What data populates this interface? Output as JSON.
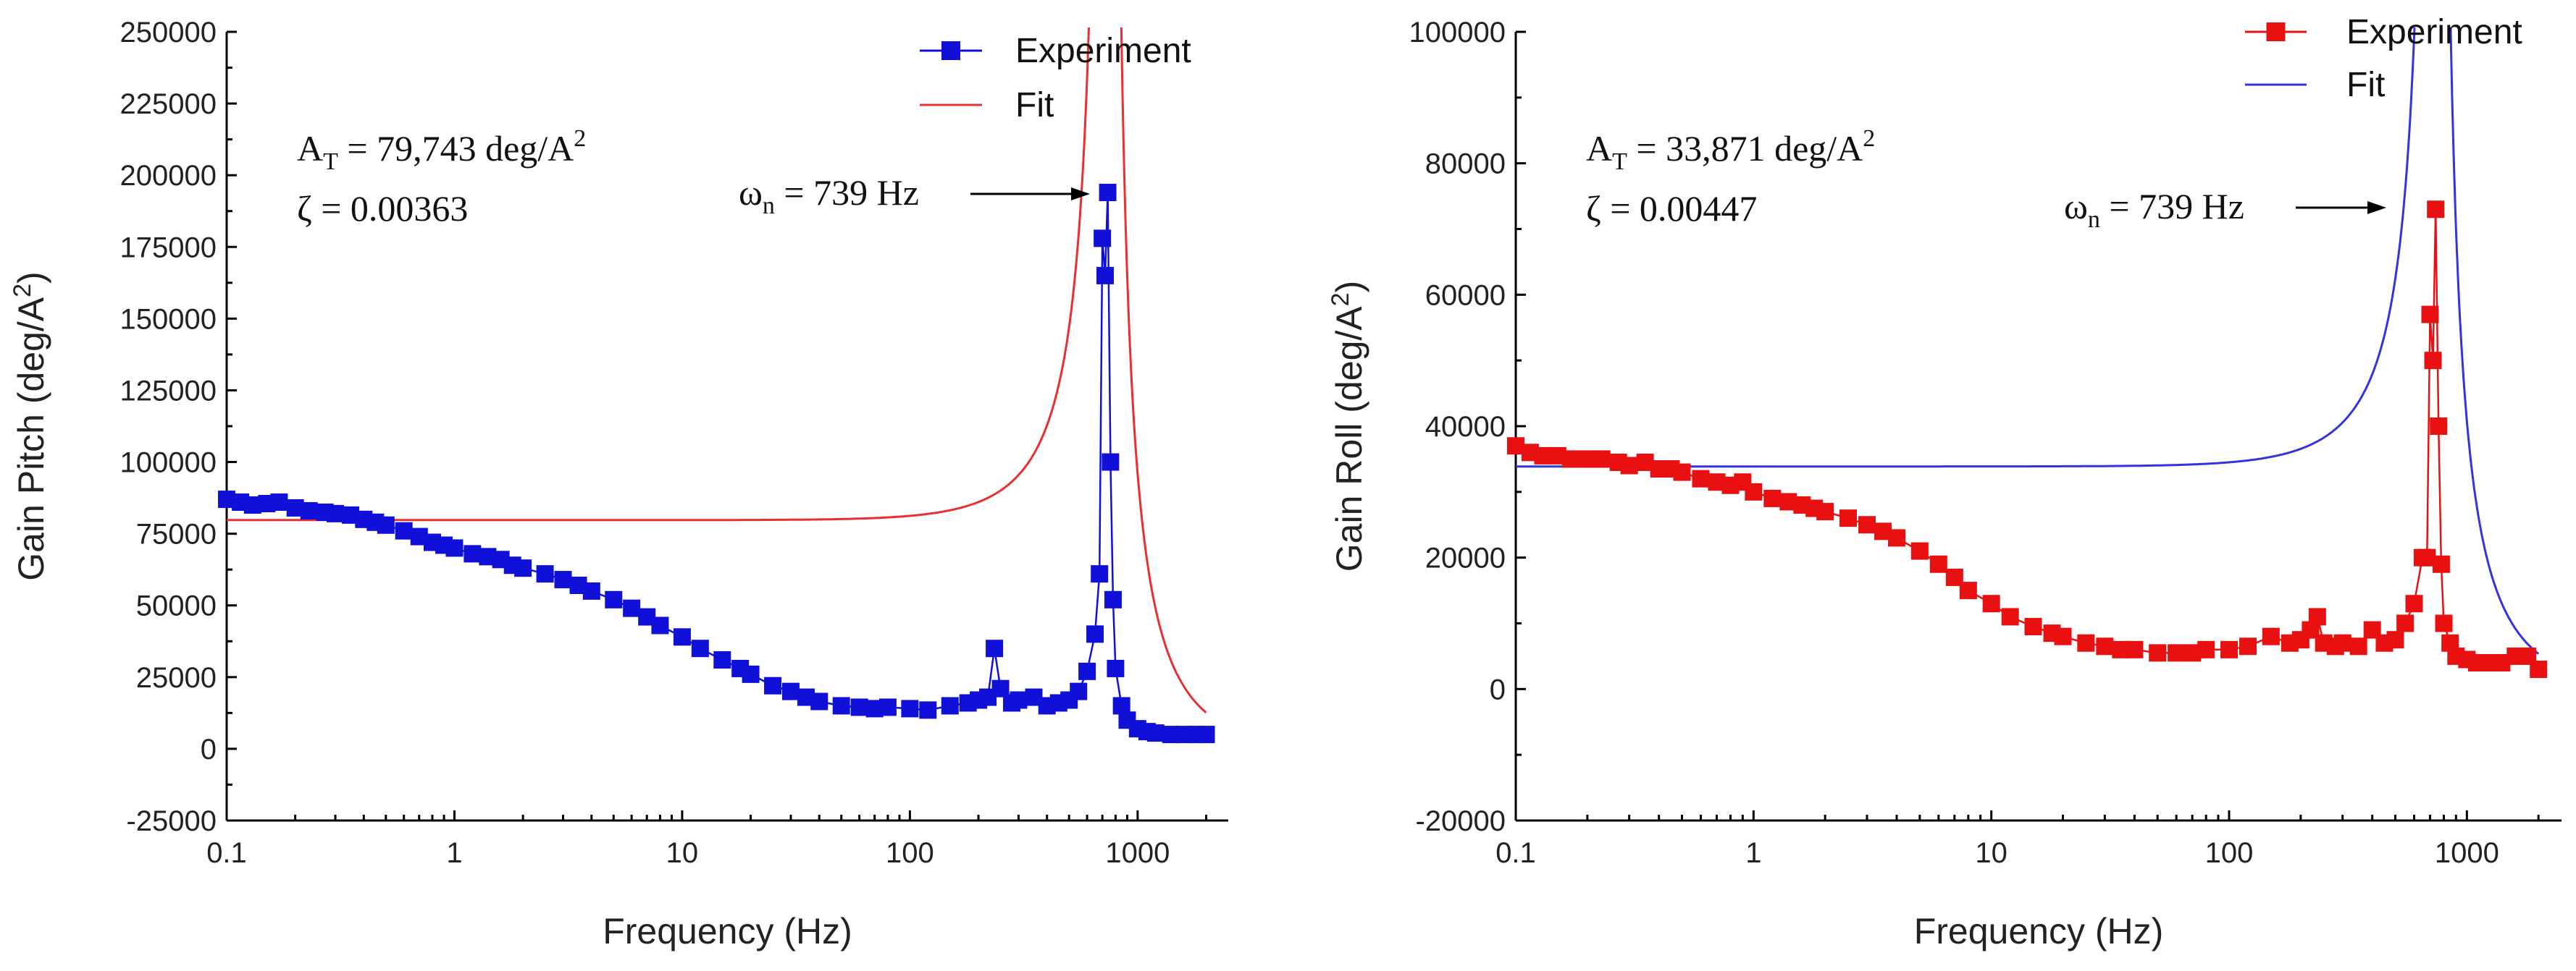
{
  "chart_data": [
    {
      "type": "line",
      "title": "",
      "xlabel": "Frequency (Hz)",
      "ylabel_main": "Gain Pitch (deg/A",
      "ylabel_sup": "2",
      "ylabel_tail": ")",
      "xscale": "log",
      "xlim": [
        0.1,
        2500
      ],
      "ylim": [
        -25000,
        250000
      ],
      "xticks": [
        0.1,
        1,
        10,
        100,
        1000
      ],
      "xtick_labels": [
        "0.1",
        "1",
        "10",
        "100",
        "1000"
      ],
      "yticks": [
        -25000,
        0,
        25000,
        50000,
        75000,
        100000,
        125000,
        150000,
        175000,
        200000,
        225000,
        250000
      ],
      "ytick_labels": [
        "-25000",
        "0",
        "25000",
        "50000",
        "75000",
        "100000",
        "125000",
        "150000",
        "175000",
        "200000",
        "225000",
        "250000"
      ],
      "legend_position": "top-right",
      "legend": [
        "Experiment",
        "Fit"
      ],
      "annotations": {
        "line1_main": "A",
        "line1_sub": "T",
        "line1_rest": " = 79,743 deg/A",
        "line1_sup": "2",
        "line2": "ζ = 0.00363",
        "peak_main": "ω",
        "peak_sub": "n",
        "peak_rest": " = 739 Hz"
      },
      "series": [
        {
          "name": "Experiment",
          "color": "#1010d8",
          "marker": "square",
          "x": [
            0.1,
            0.115,
            0.13,
            0.15,
            0.17,
            0.2,
            0.23,
            0.27,
            0.3,
            0.35,
            0.4,
            0.45,
            0.5,
            0.6,
            0.7,
            0.8,
            0.9,
            1.0,
            1.2,
            1.4,
            1.6,
            1.8,
            2.0,
            2.5,
            3.0,
            3.5,
            4.0,
            5.0,
            6.0,
            7.0,
            8.0,
            10,
            12,
            15,
            18,
            20,
            25,
            30,
            35,
            40,
            50,
            60,
            70,
            80,
            100,
            120,
            150,
            180,
            200,
            220,
            235,
            250,
            280,
            300,
            350,
            400,
            450,
            500,
            550,
            600,
            650,
            680,
            700,
            720,
            739,
            760,
            780,
            800,
            850,
            900,
            1000,
            1100,
            1200,
            1400,
            1600,
            1800,
            2000
          ],
          "y": [
            87000,
            86000,
            85000,
            85500,
            86000,
            84000,
            83000,
            82500,
            82000,
            81500,
            80000,
            79000,
            78000,
            76000,
            74000,
            72000,
            71000,
            70000,
            68000,
            67000,
            66000,
            64000,
            63000,
            61000,
            59000,
            57000,
            55000,
            52000,
            49000,
            46000,
            43000,
            39000,
            35000,
            31000,
            28000,
            26000,
            22000,
            20000,
            18000,
            16500,
            15000,
            14500,
            14000,
            14500,
            14000,
            13500,
            15000,
            16000,
            17000,
            18000,
            35000,
            21000,
            16000,
            17000,
            18000,
            15000,
            16000,
            17000,
            20000,
            27000,
            40000,
            61000,
            178000,
            165000,
            194000,
            100000,
            52000,
            28000,
            15000,
            10000,
            7000,
            6000,
            5500,
            5000,
            5000,
            5000,
            5000
          ]
        },
        {
          "name": "Fit",
          "color": "#e83030",
          "AT": 79743,
          "zeta": 0.00363,
          "fn": 739
        }
      ]
    },
    {
      "type": "line",
      "title": "",
      "xlabel": "Frequency (Hz)",
      "ylabel_main": "Gain Roll (deg/A",
      "ylabel_sup": "2",
      "ylabel_tail": ")",
      "xscale": "log",
      "xlim": [
        0.1,
        2500
      ],
      "ylim": [
        -20000,
        100000
      ],
      "xticks": [
        0.1,
        1,
        10,
        100,
        1000
      ],
      "xtick_labels": [
        "0.1",
        "1",
        "10",
        "100",
        "1000"
      ],
      "yticks": [
        -20000,
        0,
        20000,
        40000,
        60000,
        80000,
        100000
      ],
      "ytick_labels": [
        "-20000",
        "0",
        "20000",
        "40000",
        "60000",
        "80000",
        "100000"
      ],
      "legend_position": "top-right",
      "legend": [
        "Experiment",
        "Fit"
      ],
      "annotations": {
        "line1_main": "A",
        "line1_sub": "T",
        "line1_rest": " = 33,871 deg/A",
        "line1_sup": "2",
        "line2": "ζ = 0.00447",
        "peak_main": "ω",
        "peak_sub": "n",
        "peak_rest": " = 739 Hz"
      },
      "series": [
        {
          "name": "Experiment",
          "color": "#e81010",
          "marker": "square",
          "x": [
            0.1,
            0.115,
            0.13,
            0.15,
            0.17,
            0.2,
            0.23,
            0.27,
            0.3,
            0.35,
            0.4,
            0.45,
            0.5,
            0.6,
            0.7,
            0.8,
            0.9,
            1.0,
            1.2,
            1.4,
            1.6,
            1.8,
            2.0,
            2.5,
            3.0,
            3.5,
            4.0,
            5.0,
            6.0,
            7.0,
            8.0,
            10,
            12,
            15,
            18,
            20,
            25,
            30,
            35,
            40,
            50,
            60,
            70,
            80,
            100,
            120,
            150,
            180,
            200,
            220,
            235,
            250,
            280,
            300,
            350,
            400,
            450,
            500,
            550,
            600,
            650,
            680,
            700,
            720,
            739,
            760,
            780,
            800,
            850,
            900,
            1000,
            1100,
            1200,
            1400,
            1600,
            1800,
            2000
          ],
          "y": [
            37000,
            36000,
            35500,
            35500,
            35000,
            35000,
            35000,
            34500,
            34000,
            34500,
            33500,
            33500,
            33000,
            32000,
            31500,
            31000,
            31500,
            30000,
            29000,
            28500,
            28000,
            27500,
            27000,
            26000,
            25000,
            24000,
            23000,
            21000,
            19000,
            17000,
            15000,
            13000,
            11000,
            9500,
            8500,
            8000,
            7000,
            6500,
            6000,
            6000,
            5500,
            5500,
            5500,
            6000,
            6000,
            6500,
            8000,
            7000,
            7500,
            9000,
            11000,
            7000,
            6500,
            7000,
            6500,
            9000,
            7000,
            7500,
            10000,
            13000,
            20000,
            20000,
            57000,
            50000,
            73000,
            40000,
            19000,
            10000,
            7000,
            5000,
            4500,
            4000,
            4000,
            4000,
            5000,
            5000,
            3000
          ]
        },
        {
          "name": "Fit",
          "color": "#3333e0",
          "AT": 33871,
          "zeta": 0.00447,
          "fn": 739
        }
      ]
    }
  ]
}
